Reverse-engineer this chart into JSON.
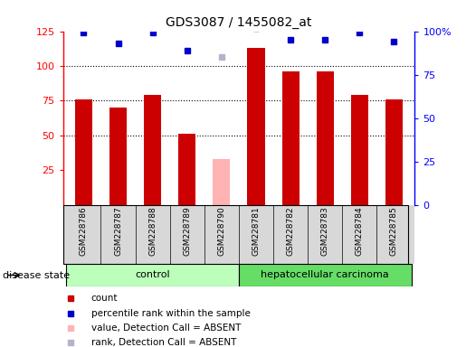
{
  "title": "GDS3087 / 1455082_at",
  "samples": [
    "GSM228786",
    "GSM228787",
    "GSM228788",
    "GSM228789",
    "GSM228790",
    "GSM228781",
    "GSM228782",
    "GSM228783",
    "GSM228784",
    "GSM228785"
  ],
  "bar_values": [
    76,
    70,
    79,
    51,
    null,
    113,
    96,
    96,
    79,
    76
  ],
  "bar_absent": [
    null,
    null,
    null,
    null,
    33,
    null,
    null,
    null,
    null,
    null
  ],
  "percentile_values": [
    99,
    93,
    99,
    89,
    null,
    102,
    95,
    95,
    99,
    94
  ],
  "percentile_absent": [
    null,
    null,
    null,
    null,
    85,
    null,
    null,
    null,
    null,
    null
  ],
  "bar_color": "#cc0000",
  "bar_absent_color": "#ffb3b3",
  "pct_color": "#0000cc",
  "pct_absent_color": "#b3b3cc",
  "ylim_left": [
    0,
    125
  ],
  "yticks_left": [
    25,
    50,
    75,
    100,
    125
  ],
  "ytick_labels_left": [
    "25",
    "50",
    "75",
    "100",
    "125"
  ],
  "ytick_labels_right": [
    "0",
    "25",
    "50",
    "75",
    "100%"
  ],
  "grid_values": [
    50,
    75,
    100
  ],
  "group_colors": [
    "#bbffbb",
    "#66dd66"
  ],
  "disease_state_label": "disease state",
  "bg_color": "#d8d8d8",
  "plot_bg_color": "#ffffff",
  "bar_width": 0.5,
  "legend_items": [
    {
      "label": "count",
      "color": "#cc0000",
      "marker": "s"
    },
    {
      "label": "percentile rank within the sample",
      "color": "#0000cc",
      "marker": "s"
    },
    {
      "label": "value, Detection Call = ABSENT",
      "color": "#ffb3b3",
      "marker": "s"
    },
    {
      "label": "rank, Detection Call = ABSENT",
      "color": "#b3b3cc",
      "marker": "s"
    }
  ]
}
